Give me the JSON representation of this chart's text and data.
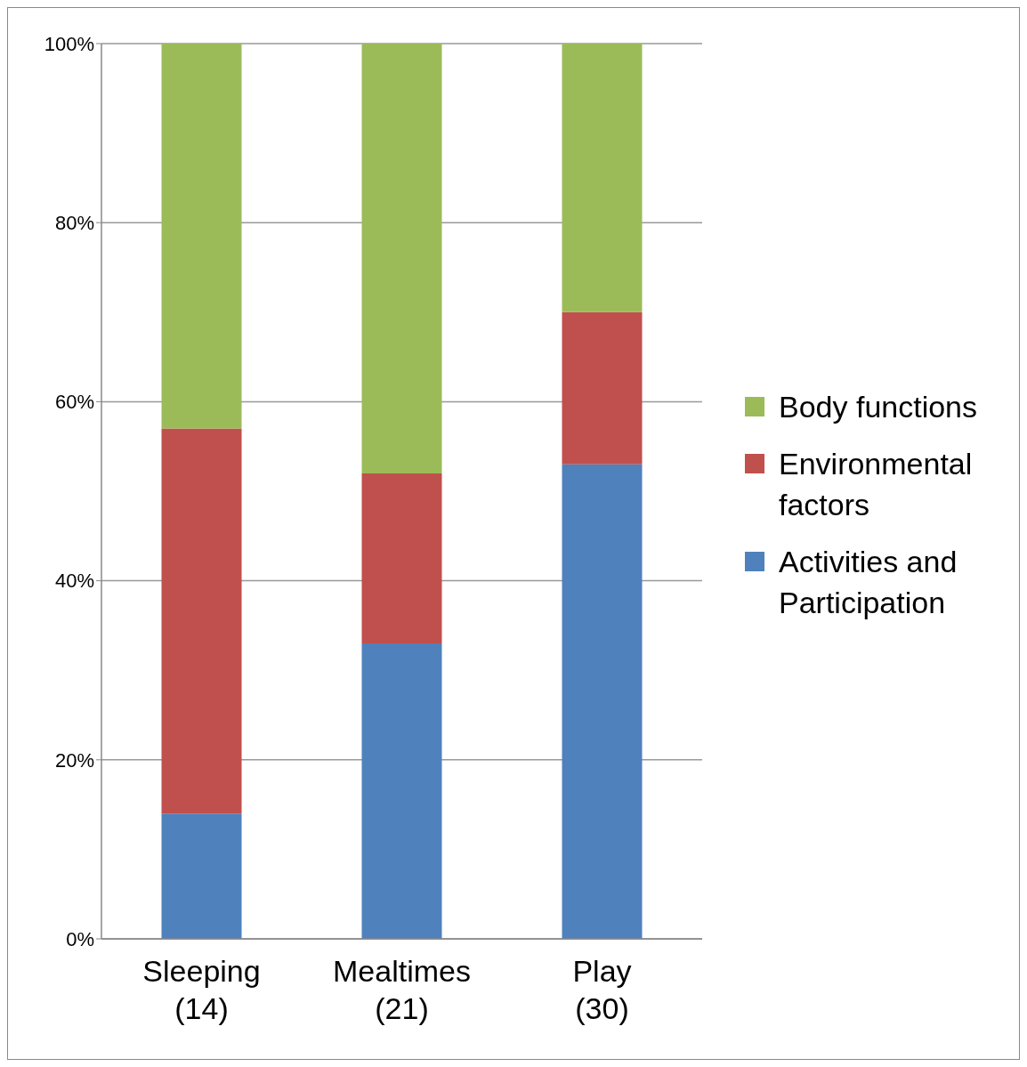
{
  "chart_data": {
    "type": "bar",
    "stacked": true,
    "categories": [
      "Sleeping (14)",
      "Mealtimes (21)",
      "Play (30)"
    ],
    "series": [
      {
        "name": "Activities and Participation",
        "color": "#4f81bd",
        "values": [
          14,
          33,
          53
        ]
      },
      {
        "name": "Environmental factors",
        "color": "#c0504d",
        "values": [
          43,
          19,
          17
        ]
      },
      {
        "name": "Body functions",
        "color": "#9bbb59",
        "values": [
          43,
          48,
          30
        ]
      }
    ],
    "ylim": [
      0,
      100
    ],
    "yticks": [
      {
        "value": 0,
        "label": "0%"
      },
      {
        "value": 20,
        "label": "20%"
      },
      {
        "value": 40,
        "label": "40%"
      },
      {
        "value": 60,
        "label": "60%"
      },
      {
        "value": 80,
        "label": "80%"
      },
      {
        "value": 100,
        "label": "100%"
      }
    ],
    "grid": "y",
    "legend": "right"
  }
}
